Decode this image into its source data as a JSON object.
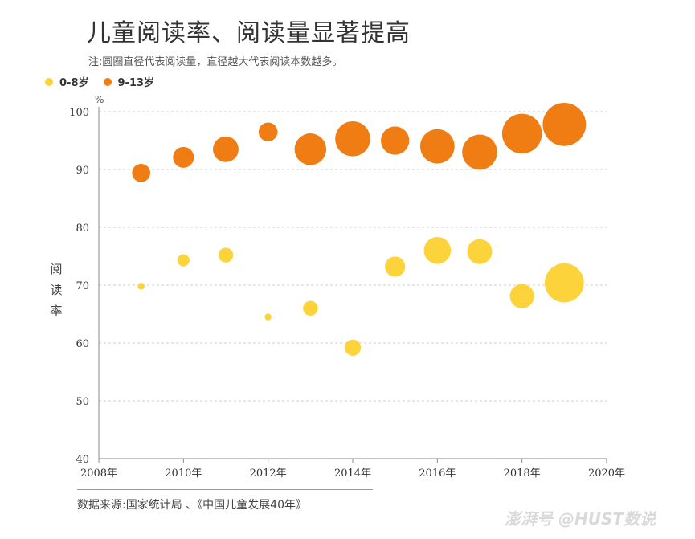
{
  "title": "儿童阅读率、阅读量显著提高",
  "subtitle": "注:圆圈直径代表阅读量，直径越大代表阅读本数越多。",
  "legend": [
    {
      "label": "0-8岁",
      "color": "#FDD33C"
    },
    {
      "label": "9-13岁",
      "color": "#F07D13"
    }
  ],
  "unit": "%",
  "source": "数据来源:国家统计局 、《中国儿童发展40年》",
  "watermark": "澎湃号 @HUST数说",
  "chart_data": {
    "type": "scatter",
    "subtype": "bubble",
    "title": "儿童阅读率、阅读量显著提高",
    "xlabel": "",
    "ylabel": "阅读率",
    "xlim": [
      2008,
      2020
    ],
    "ylim": [
      40,
      100
    ],
    "x_ticks": [
      "2008年",
      "2010年",
      "2012年",
      "2014年",
      "2016年",
      "2018年",
      "2020年"
    ],
    "y_ticks": [
      "40",
      "50",
      "60",
      "70",
      "80",
      "90",
      "100"
    ],
    "grid": "horizontal dashed",
    "legend_position": "top-left",
    "size_encodes": "阅读量",
    "series": [
      {
        "name": "0-8岁",
        "color": "#FDD33C",
        "points": [
          {
            "x": 2009,
            "y": 69.8,
            "size": 1.0
          },
          {
            "x": 2010,
            "y": 74.3,
            "size": 1.8
          },
          {
            "x": 2011,
            "y": 75.2,
            "size": 2.2
          },
          {
            "x": 2012,
            "y": 64.5,
            "size": 1.0
          },
          {
            "x": 2013,
            "y": 66.0,
            "size": 2.2
          },
          {
            "x": 2014,
            "y": 59.2,
            "size": 2.4
          },
          {
            "x": 2015,
            "y": 73.2,
            "size": 3.0
          },
          {
            "x": 2016,
            "y": 76.0,
            "size": 4.0
          },
          {
            "x": 2017,
            "y": 75.8,
            "size": 3.7
          },
          {
            "x": 2018,
            "y": 68.1,
            "size": 3.6
          },
          {
            "x": 2019,
            "y": 70.4,
            "size": 5.8
          }
        ]
      },
      {
        "name": "9-13岁",
        "color": "#F07D13",
        "points": [
          {
            "x": 2009,
            "y": 89.4,
            "size": 2.7
          },
          {
            "x": 2010,
            "y": 92.1,
            "size": 3.1
          },
          {
            "x": 2011,
            "y": 93.5,
            "size": 3.8
          },
          {
            "x": 2012,
            "y": 96.5,
            "size": 2.8
          },
          {
            "x": 2013,
            "y": 93.5,
            "size": 4.7
          },
          {
            "x": 2014,
            "y": 95.3,
            "size": 5.2
          },
          {
            "x": 2015,
            "y": 95.0,
            "size": 4.2
          },
          {
            "x": 2016,
            "y": 94.0,
            "size": 5.1
          },
          {
            "x": 2017,
            "y": 93.0,
            "size": 5.2
          },
          {
            "x": 2018,
            "y": 96.2,
            "size": 5.9
          },
          {
            "x": 2019,
            "y": 97.8,
            "size": 6.4
          }
        ]
      }
    ]
  }
}
